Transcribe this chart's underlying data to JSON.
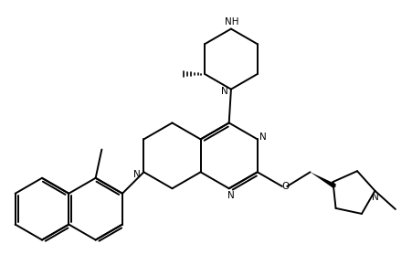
{
  "bg_color": "#ffffff",
  "lw": 1.4,
  "fig_width": 4.52,
  "fig_height": 2.9,
  "dpi": 100,
  "xlim": [
    0,
    10
  ],
  "ylim": [
    0,
    6.43
  ]
}
